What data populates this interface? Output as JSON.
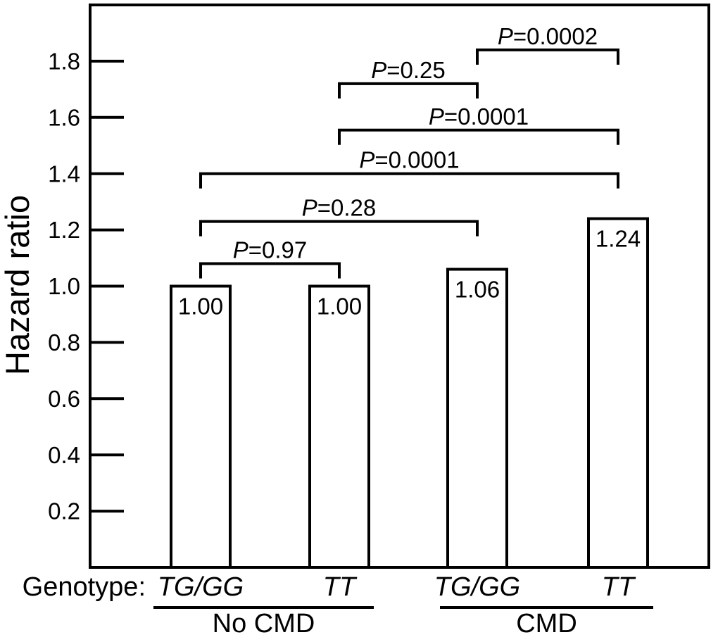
{
  "figure_title": "",
  "colors": {
    "foreground": "#000000",
    "background": "#ffffff",
    "bar_fill": "#ffffff"
  },
  "chart_data": {
    "type": "bar",
    "title": "",
    "xlabel": "",
    "ylabel": "Hazard ratio",
    "ylim": [
      0,
      2.0
    ],
    "yticks": [
      0.2,
      0.4,
      0.6,
      0.8,
      1.0,
      1.2,
      1.4,
      1.6,
      1.8
    ],
    "grid": false,
    "legend": false,
    "x_axis_prefix": "Genotype:",
    "categories": [
      "TG/GG",
      "TT",
      "TG/GG",
      "TT"
    ],
    "values": [
      1.0,
      1.0,
      1.06,
      1.24
    ],
    "bar_value_labels": [
      "1.00",
      "1.00",
      "1.06",
      "1.24"
    ],
    "groups": [
      {
        "label": "No CMD",
        "bars": [
          0,
          1
        ]
      },
      {
        "label": "CMD",
        "bars": [
          2,
          3
        ]
      }
    ],
    "comparisons": [
      {
        "from": 0,
        "to": 1,
        "bracket_y": 1.08,
        "label": "P=0.97"
      },
      {
        "from": 0,
        "to": 2,
        "bracket_y": 1.23,
        "label": "P=0.28"
      },
      {
        "from": 0,
        "to": 3,
        "bracket_y": 1.4,
        "label": "P=0.0001"
      },
      {
        "from": 1,
        "to": 3,
        "bracket_y": 1.555,
        "label": "P=0.0001"
      },
      {
        "from": 1,
        "to": 2,
        "bracket_y": 1.72,
        "label": "P=0.25"
      },
      {
        "from": 2,
        "to": 3,
        "bracket_y": 1.84,
        "label": "P=0.0002"
      }
    ]
  }
}
